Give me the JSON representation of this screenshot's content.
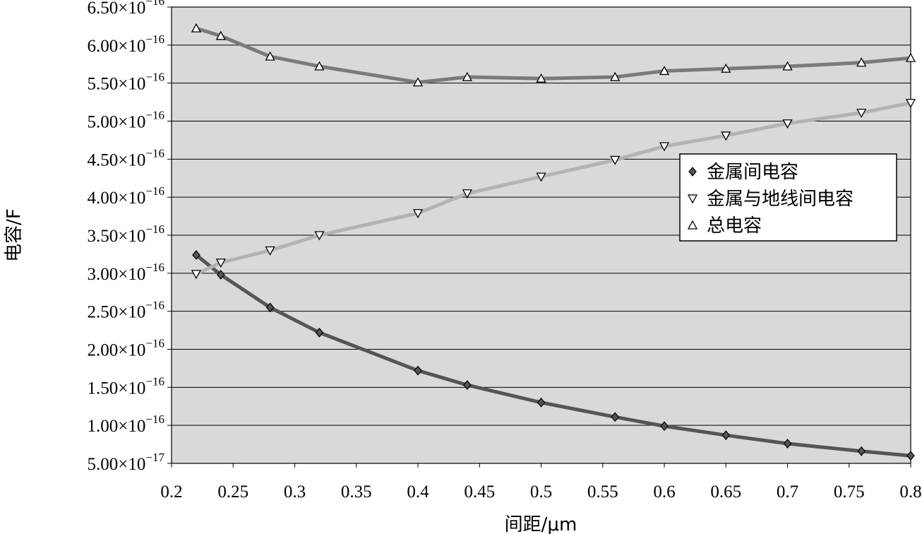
{
  "chart_data": {
    "type": "line",
    "title": "",
    "xlabel": "间距/μm",
    "ylabel": "电容/F",
    "xlim": [
      0.2,
      0.8
    ],
    "ylim": [
      5e-17,
      6.5e-16
    ],
    "x_ticks": [
      {
        "value": 0.2,
        "label": "0.2"
      },
      {
        "value": 0.25,
        "label": "0.25"
      },
      {
        "value": 0.3,
        "label": "0.3"
      },
      {
        "value": 0.35,
        "label": "0.35"
      },
      {
        "value": 0.4,
        "label": "0.4"
      },
      {
        "value": 0.45,
        "label": "0.45"
      },
      {
        "value": 0.5,
        "label": "0.5"
      },
      {
        "value": 0.55,
        "label": "0.55"
      },
      {
        "value": 0.6,
        "label": "0.6"
      },
      {
        "value": 0.65,
        "label": "0.65"
      },
      {
        "value": 0.7,
        "label": "0.7"
      },
      {
        "value": 0.75,
        "label": "0.75"
      },
      {
        "value": 0.8,
        "label": "0.8"
      }
    ],
    "y_ticks": [
      {
        "value": 5e-17,
        "mantissa": "5.00",
        "base": "×10",
        "exponent": "−17"
      },
      {
        "value": 1e-16,
        "mantissa": "1.00",
        "base": "×10",
        "exponent": "−16"
      },
      {
        "value": 1.5e-16,
        "mantissa": "1.50",
        "base": "×10",
        "exponent": "−16"
      },
      {
        "value": 2e-16,
        "mantissa": "2.00",
        "base": "×10",
        "exponent": "−16"
      },
      {
        "value": 2.5e-16,
        "mantissa": "2.50",
        "base": "×10",
        "exponent": "−16"
      },
      {
        "value": 3e-16,
        "mantissa": "3.00",
        "base": "×10",
        "exponent": "−16"
      },
      {
        "value": 3.5e-16,
        "mantissa": "3.50",
        "base": "×10",
        "exponent": "−16"
      },
      {
        "value": 4e-16,
        "mantissa": "4.00",
        "base": "×10",
        "exponent": "−16"
      },
      {
        "value": 4.5e-16,
        "mantissa": "4.50",
        "base": "×10",
        "exponent": "−16"
      },
      {
        "value": 5e-16,
        "mantissa": "5.00",
        "base": "×10",
        "exponent": "−16"
      },
      {
        "value": 5.5e-16,
        "mantissa": "5.50",
        "base": "×10",
        "exponent": "−16"
      },
      {
        "value": 6e-16,
        "mantissa": "6.00",
        "base": "×10",
        "exponent": "−16"
      },
      {
        "value": 6.5e-16,
        "mantissa": "6.50",
        "base": "×10",
        "exponent": "−16"
      }
    ],
    "grid": {
      "horizontal": true,
      "vertical": false
    },
    "legend_position": "right",
    "plot_background": "#d9d9d9",
    "series": [
      {
        "name": "金属间电容",
        "marker": "diamond",
        "color": "#555555",
        "x": [
          0.22,
          0.24,
          0.28,
          0.32,
          0.4,
          0.44,
          0.5,
          0.56,
          0.6,
          0.65,
          0.7,
          0.76,
          0.8
        ],
        "y": [
          3.24e-16,
          2.98e-16,
          2.55e-16,
          2.22e-16,
          1.72e-16,
          1.53e-16,
          1.3e-16,
          1.11e-16,
          9.9e-17,
          8.7e-17,
          7.6e-17,
          6.6e-17,
          6e-17
        ]
      },
      {
        "name": "金属与地线间电容",
        "marker": "triangle-down",
        "color": "#b3b3b3",
        "x": [
          0.22,
          0.24,
          0.28,
          0.32,
          0.4,
          0.44,
          0.5,
          0.56,
          0.6,
          0.65,
          0.7,
          0.76,
          0.8
        ],
        "y": [
          2.99e-16,
          3.14e-16,
          3.3e-16,
          3.5e-16,
          3.79e-16,
          4.05e-16,
          4.27e-16,
          4.49e-16,
          4.67e-16,
          4.81e-16,
          4.97e-16,
          5.11e-16,
          5.24e-16
        ]
      },
      {
        "name": "总电容",
        "marker": "triangle-up",
        "color": "#7a7a7a",
        "x": [
          0.22,
          0.24,
          0.28,
          0.32,
          0.4,
          0.44,
          0.5,
          0.56,
          0.6,
          0.65,
          0.7,
          0.76,
          0.8
        ],
        "y": [
          6.22e-16,
          6.12e-16,
          5.85e-16,
          5.72e-16,
          5.51e-16,
          5.58e-16,
          5.56e-16,
          5.58e-16,
          5.66e-16,
          5.69e-16,
          5.72e-16,
          5.77e-16,
          5.83e-16
        ]
      }
    ]
  }
}
